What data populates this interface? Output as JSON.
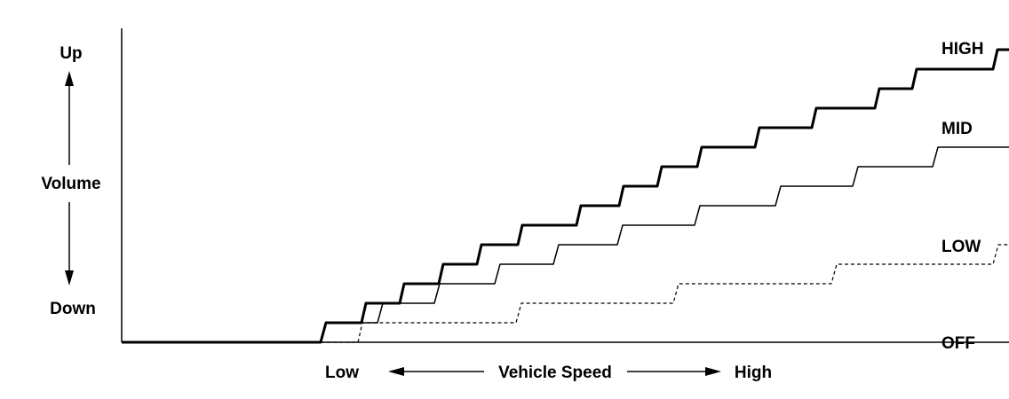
{
  "chart_data": {
    "type": "line",
    "title": "",
    "xlabel": "Vehicle Speed",
    "x_low_label": "Low",
    "x_high_label": "High",
    "ylabel": "Volume",
    "y_up_label": "Up",
    "y_down_label": "Down",
    "grid": false,
    "series": [
      {
        "name": "HIGH",
        "style": "thick",
        "steps": [
          [
            0,
            0
          ],
          [
            224,
            0
          ],
          [
            230,
            1
          ],
          [
            270,
            1
          ],
          [
            275,
            2
          ],
          [
            313,
            2
          ],
          [
            318,
            3
          ],
          [
            357,
            3
          ],
          [
            362,
            4
          ],
          [
            400,
            4
          ],
          [
            405,
            5
          ],
          [
            446,
            5
          ],
          [
            451,
            6
          ],
          [
            512,
            6
          ],
          [
            517,
            7
          ],
          [
            560,
            7
          ],
          [
            565,
            8
          ],
          [
            603,
            8
          ],
          [
            608,
            9
          ],
          [
            648,
            9
          ],
          [
            653,
            10
          ],
          [
            713,
            10
          ],
          [
            718,
            11
          ],
          [
            777,
            11
          ],
          [
            782,
            12
          ],
          [
            848,
            12
          ],
          [
            853,
            13
          ],
          [
            890,
            13
          ],
          [
            895,
            14
          ],
          [
            981,
            14
          ],
          [
            986,
            15
          ],
          [
            1046,
            15
          ]
        ]
      },
      {
        "name": "MID",
        "style": "thin",
        "steps": [
          [
            0,
            0
          ],
          [
            224,
            0
          ],
          [
            230,
            1
          ],
          [
            288,
            1
          ],
          [
            294,
            2
          ],
          [
            352,
            2
          ],
          [
            358,
            3
          ],
          [
            420,
            3
          ],
          [
            426,
            4
          ],
          [
            486,
            4
          ],
          [
            492,
            5
          ],
          [
            558,
            5
          ],
          [
            564,
            6
          ],
          [
            645,
            6
          ],
          [
            651,
            7
          ],
          [
            736,
            7
          ],
          [
            742,
            8
          ],
          [
            823,
            8
          ],
          [
            829,
            9
          ],
          [
            913,
            9
          ],
          [
            919,
            10
          ],
          [
            1001,
            10
          ],
          [
            1007,
            11
          ],
          [
            1046,
            11
          ]
        ]
      },
      {
        "name": "LOW",
        "style": "dashed",
        "steps": [
          [
            0,
            0
          ],
          [
            266,
            0
          ],
          [
            271,
            1
          ],
          [
            444,
            1
          ],
          [
            450,
            2
          ],
          [
            621,
            2
          ],
          [
            627,
            3
          ],
          [
            799,
            3
          ],
          [
            805,
            4
          ],
          [
            981,
            4
          ],
          [
            987,
            5
          ],
          [
            1046,
            5
          ]
        ]
      },
      {
        "name": "OFF",
        "style": "thin",
        "steps": [
          [
            0,
            0
          ],
          [
            1046,
            0
          ]
        ]
      }
    ],
    "y_units_per_step": {
      "HIGH": 22,
      "MID": 22,
      "LOW": 22,
      "OFF": 0
    }
  }
}
